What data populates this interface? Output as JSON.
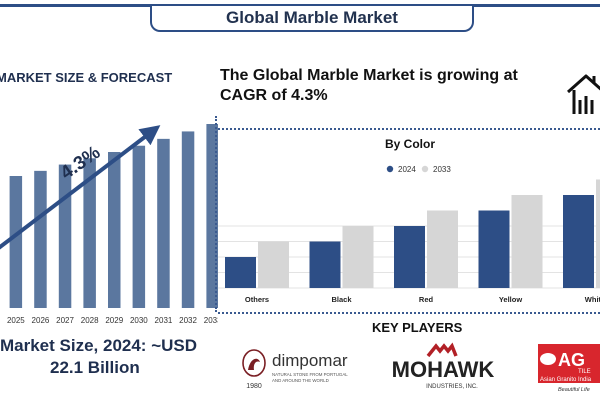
{
  "header": {
    "title": "Global Marble Market"
  },
  "left_panel": {
    "heading": "MARKET SIZE & FORECAST",
    "cagr_label": "4.3%",
    "market_size_line1": "Market Size, 2024: ~USD",
    "market_size_line2": "22.1 Billion"
  },
  "headline": {
    "line1": "The Global Marble Market is growing at",
    "line2": "CAGR of 4.3%"
  },
  "key_players": {
    "title": "KEY PLAYERS",
    "dimpomar": {
      "name": "dimpomar",
      "tagline1": "NATURAL STONE FROM PORTUGAL",
      "tagline2": "AND AROUND THE WORLD",
      "year": "1980"
    },
    "mohawk": {
      "name": "MOHAWK",
      "sub": "INDUSTRIES, INC."
    },
    "ag": {
      "name": "AG",
      "sub": "TILE",
      "line": "Asian Granito India",
      "slogan": "Beautiful Life"
    }
  },
  "colors": {
    "navy": "#2d4e86",
    "bar": "#5b779f",
    "series2024": "#2d4e86",
    "series2033": "#d6d6d6"
  },
  "chart_data": [
    {
      "type": "bar",
      "title": "",
      "categories": [
        "2024",
        "2025",
        "2026",
        "2027",
        "2028",
        "2029",
        "2030",
        "2031",
        "2032",
        "2033"
      ],
      "values": [
        22.1,
        23.1,
        24.0,
        25.1,
        26.2,
        27.3,
        28.4,
        29.6,
        30.9,
        32.2
      ],
      "annotation": "4.3%"
    },
    {
      "type": "bar",
      "title": "By Color",
      "categories": [
        "Others",
        "Black",
        "Red",
        "Yellow",
        "White"
      ],
      "series": [
        {
          "name": "2024",
          "values": [
            2.0,
            3.0,
            4.0,
            5.0,
            6.0
          ]
        },
        {
          "name": "2033",
          "values": [
            3.0,
            4.0,
            5.0,
            6.0,
            7.0
          ]
        }
      ],
      "grid": true,
      "legend": "top-center"
    }
  ]
}
